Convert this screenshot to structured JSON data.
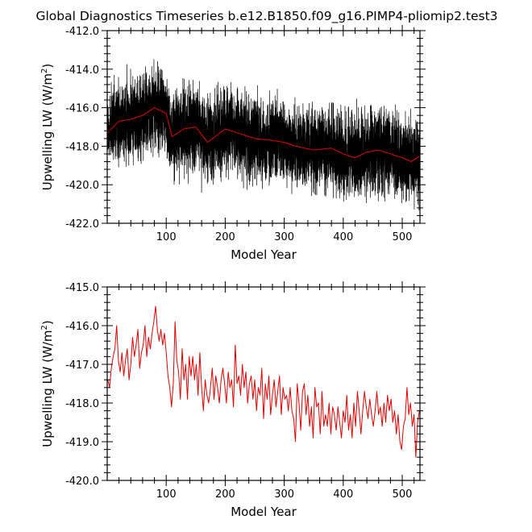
{
  "title": "Global Diagnostics Timeseries b.e12.B1850.f09_g16.PIMP4-pliomip2.test3",
  "chart_data": [
    {
      "type": "line",
      "xlabel": "Model Year",
      "ylabel_prefix": "Upwelling LW (W/m",
      "ylabel_sup": "2",
      "ylabel_suffix": ")",
      "xlim": [
        0,
        530
      ],
      "ylim": [
        -422.0,
        -412.0
      ],
      "xticks": [
        100,
        200,
        300,
        400,
        500
      ],
      "xtick_labels": [
        "100",
        "200",
        "300",
        "400",
        "500"
      ],
      "yticks": [
        -422.0,
        -420.0,
        -418.0,
        -416.0,
        -414.0,
        -412.0
      ],
      "ytick_labels": [
        "-422.0",
        "-420.0",
        "-418.0",
        "-416.0",
        "-414.0",
        "-412.0"
      ],
      "series": [
        {
          "kind": "monthly",
          "color": "#000000",
          "stroke_width": 0.7,
          "spread": 1.0,
          "x_start": 0.04,
          "x_end": 530,
          "points_per_year": 12
        },
        {
          "kind": "annual",
          "color": "#e00000",
          "stroke_width": 1.0,
          "x": [
            1,
            20,
            40,
            60,
            80,
            100,
            110,
            130,
            150,
            170,
            200,
            220,
            250,
            280,
            300,
            320,
            350,
            380,
            400,
            420,
            440,
            460,
            480,
            500,
            515,
            530
          ],
          "y": [
            -417.3,
            -416.7,
            -416.6,
            -416.4,
            -416.0,
            -416.3,
            -417.5,
            -417.1,
            -417.0,
            -417.8,
            -417.1,
            -417.3,
            -417.6,
            -417.7,
            -417.8,
            -418.0,
            -418.2,
            -418.1,
            -418.4,
            -418.6,
            -418.3,
            -418.2,
            -418.4,
            -418.6,
            -418.8,
            -418.5
          ]
        }
      ]
    },
    {
      "type": "line",
      "xlabel": "Model Year",
      "ylabel_prefix": "Upwelling LW (W/m",
      "ylabel_sup": "2",
      "ylabel_suffix": ")",
      "xlim": [
        0,
        530
      ],
      "ylim": [
        -420.0,
        -415.0
      ],
      "xticks": [
        100,
        200,
        300,
        400,
        500
      ],
      "xtick_labels": [
        "100",
        "200",
        "300",
        "400",
        "500"
      ],
      "yticks": [
        -420.0,
        -419.0,
        -418.0,
        -417.0,
        -416.0,
        -415.0
      ],
      "ytick_labels": [
        "-420.0",
        "-419.0",
        "-418.0",
        "-417.0",
        "-416.0",
        "-415.0"
      ],
      "series": [
        {
          "kind": "annual",
          "color": "#e00000",
          "stroke_width": 1.0,
          "x": [
            1,
            4,
            7,
            10,
            13,
            16,
            19,
            22,
            25,
            28,
            31,
            34,
            37,
            40,
            43,
            46,
            49,
            52,
            55,
            58,
            61,
            64,
            67,
            70,
            73,
            76,
            79,
            82,
            85,
            88,
            91,
            94,
            97,
            100,
            103,
            106,
            109,
            112,
            115,
            118,
            121,
            124,
            127,
            130,
            133,
            136,
            139,
            142,
            145,
            148,
            151,
            154,
            157,
            160,
            163,
            166,
            169,
            172,
            175,
            178,
            181,
            184,
            187,
            190,
            193,
            196,
            199,
            202,
            205,
            208,
            211,
            214,
            217,
            220,
            223,
            226,
            229,
            232,
            235,
            238,
            241,
            244,
            247,
            250,
            253,
            256,
            259,
            262,
            265,
            268,
            271,
            274,
            277,
            280,
            283,
            286,
            289,
            292,
            295,
            298,
            301,
            304,
            307,
            310,
            313,
            316,
            319,
            322,
            325,
            328,
            331,
            334,
            337,
            340,
            343,
            346,
            349,
            352,
            355,
            358,
            361,
            364,
            367,
            370,
            373,
            376,
            379,
            382,
            385,
            388,
            391,
            394,
            397,
            400,
            403,
            406,
            409,
            412,
            415,
            418,
            421,
            424,
            427,
            430,
            433,
            436,
            439,
            442,
            445,
            448,
            451,
            454,
            457,
            460,
            463,
            466,
            469,
            472,
            475,
            478,
            481,
            484,
            487,
            490,
            493,
            496,
            499,
            502,
            505,
            508,
            511,
            514,
            517,
            520,
            523,
            526,
            529
          ],
          "y": [
            -417.4,
            -417.6,
            -417.1,
            -416.8,
            -416.6,
            -416.0,
            -416.9,
            -417.2,
            -416.7,
            -417.3,
            -416.9,
            -416.6,
            -417.4,
            -417.0,
            -416.3,
            -416.8,
            -416.5,
            -416.1,
            -417.1,
            -416.7,
            -416.5,
            -416.0,
            -416.8,
            -416.3,
            -416.6,
            -416.2,
            -415.9,
            -415.5,
            -416.1,
            -416.4,
            -416.1,
            -416.5,
            -416.2,
            -416.7,
            -417.3,
            -417.6,
            -418.1,
            -417.5,
            -415.9,
            -416.9,
            -417.2,
            -417.9,
            -416.6,
            -417.4,
            -417.0,
            -417.9,
            -416.8,
            -417.3,
            -416.8,
            -417.4,
            -417.0,
            -417.8,
            -416.7,
            -417.6,
            -418.2,
            -417.4,
            -417.8,
            -418.0,
            -417.6,
            -417.1,
            -417.9,
            -417.3,
            -417.6,
            -418.0,
            -417.4,
            -417.1,
            -417.5,
            -418.0,
            -417.2,
            -417.6,
            -417.4,
            -418.1,
            -416.5,
            -417.5,
            -417.3,
            -417.8,
            -417.0,
            -417.6,
            -417.2,
            -418.0,
            -417.5,
            -417.3,
            -417.9,
            -417.4,
            -418.2,
            -417.6,
            -417.8,
            -417.1,
            -418.4,
            -417.5,
            -417.9,
            -417.3,
            -418.3,
            -417.8,
            -417.4,
            -418.1,
            -417.7,
            -417.3,
            -418.3,
            -417.6,
            -417.9,
            -417.8,
            -418.2,
            -417.6,
            -418.2,
            -418.4,
            -419.0,
            -417.5,
            -418.0,
            -418.7,
            -417.7,
            -417.5,
            -418.3,
            -417.8,
            -418.6,
            -418.1,
            -418.9,
            -417.6,
            -418.1,
            -418.0,
            -418.8,
            -417.7,
            -418.6,
            -418.3,
            -418.6,
            -418.0,
            -418.8,
            -418.1,
            -418.3,
            -418.7,
            -418.1,
            -418.5,
            -418.9,
            -418.2,
            -418.5,
            -417.8,
            -418.7,
            -418.3,
            -418.9,
            -418.0,
            -418.6,
            -417.7,
            -418.2,
            -418.8,
            -418.2,
            -417.7,
            -418.1,
            -418.4,
            -417.9,
            -418.3,
            -418.6,
            -418.2,
            -417.7,
            -418.3,
            -418.1,
            -418.6,
            -418.0,
            -418.5,
            -417.8,
            -418.2,
            -417.9,
            -418.5,
            -418.2,
            -418.8,
            -418.3,
            -419.0,
            -419.2,
            -418.6,
            -418.4,
            -417.6,
            -418.3,
            -418.0,
            -418.6,
            -418.3,
            -419.4,
            -418.5,
            -418.2
          ]
        }
      ]
    }
  ]
}
